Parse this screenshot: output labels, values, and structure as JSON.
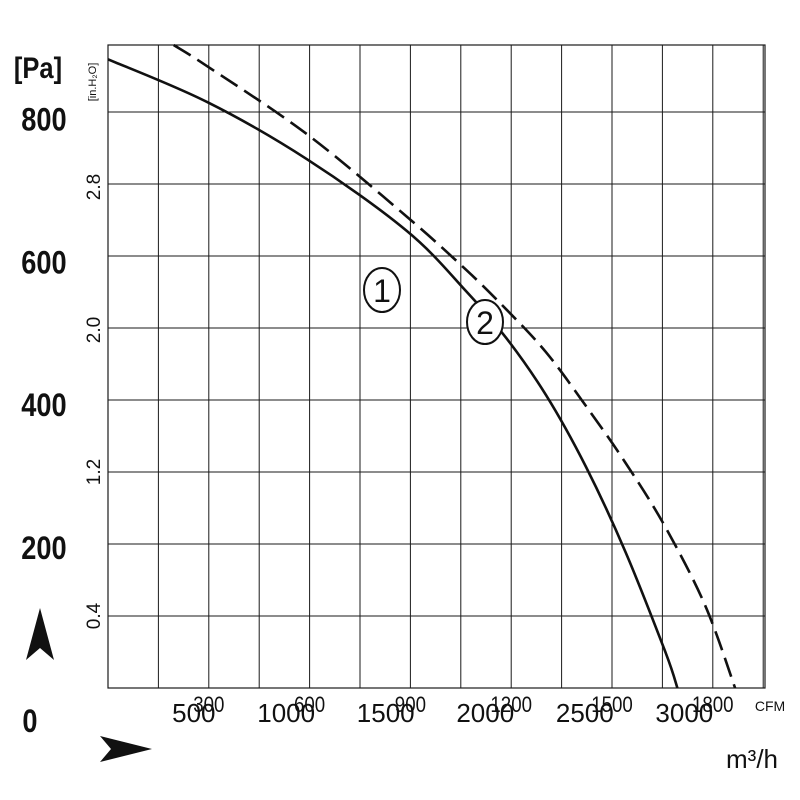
{
  "chart_data": {
    "type": "line",
    "title": "",
    "y_axes": {
      "pa": {
        "unit": "[Pa]",
        "ticks": [
          0,
          200,
          400,
          600,
          800
        ],
        "range": [
          0,
          900
        ]
      },
      "inh2o": {
        "unit": "[in.H₂O]",
        "ticks": [
          "0.4",
          "1.2",
          "2.0",
          "2.8"
        ]
      }
    },
    "x_axes": {
      "cfm": {
        "unit": "CFM",
        "ticks": [
          "300",
          "600",
          "900",
          "1200",
          "1500",
          "1800"
        ]
      },
      "m3h": {
        "unit": "m³/h",
        "ticks": [
          "500",
          "1000",
          "1500",
          "2000",
          "2500",
          "3000"
        ],
        "range": [
          0,
          3300
        ]
      }
    },
    "grid": true,
    "series": [
      {
        "name": "1",
        "style": "solid",
        "color": "#111111",
        "points": [
          [
            0,
            880
          ],
          [
            500,
            820
          ],
          [
            1000,
            740
          ],
          [
            1500,
            640
          ],
          [
            1800,
            555
          ],
          [
            2000,
            490
          ],
          [
            2200,
            410
          ],
          [
            2400,
            310
          ],
          [
            2600,
            190
          ],
          [
            2800,
            50
          ],
          [
            2860,
            0
          ]
        ]
      },
      {
        "name": "2",
        "style": "dashed",
        "color": "#111111",
        "points": [
          [
            330,
            900
          ],
          [
            500,
            870
          ],
          [
            1000,
            775
          ],
          [
            1500,
            660
          ],
          [
            1800,
            585
          ],
          [
            2000,
            530
          ],
          [
            2200,
            470
          ],
          [
            2400,
            395
          ],
          [
            2600,
            315
          ],
          [
            2800,
            225
          ],
          [
            3000,
            115
          ],
          [
            3150,
            0
          ]
        ]
      }
    ],
    "markers": {
      "flow_arrow": "arrow-right",
      "pressure_arrow": "arrow-up"
    }
  }
}
